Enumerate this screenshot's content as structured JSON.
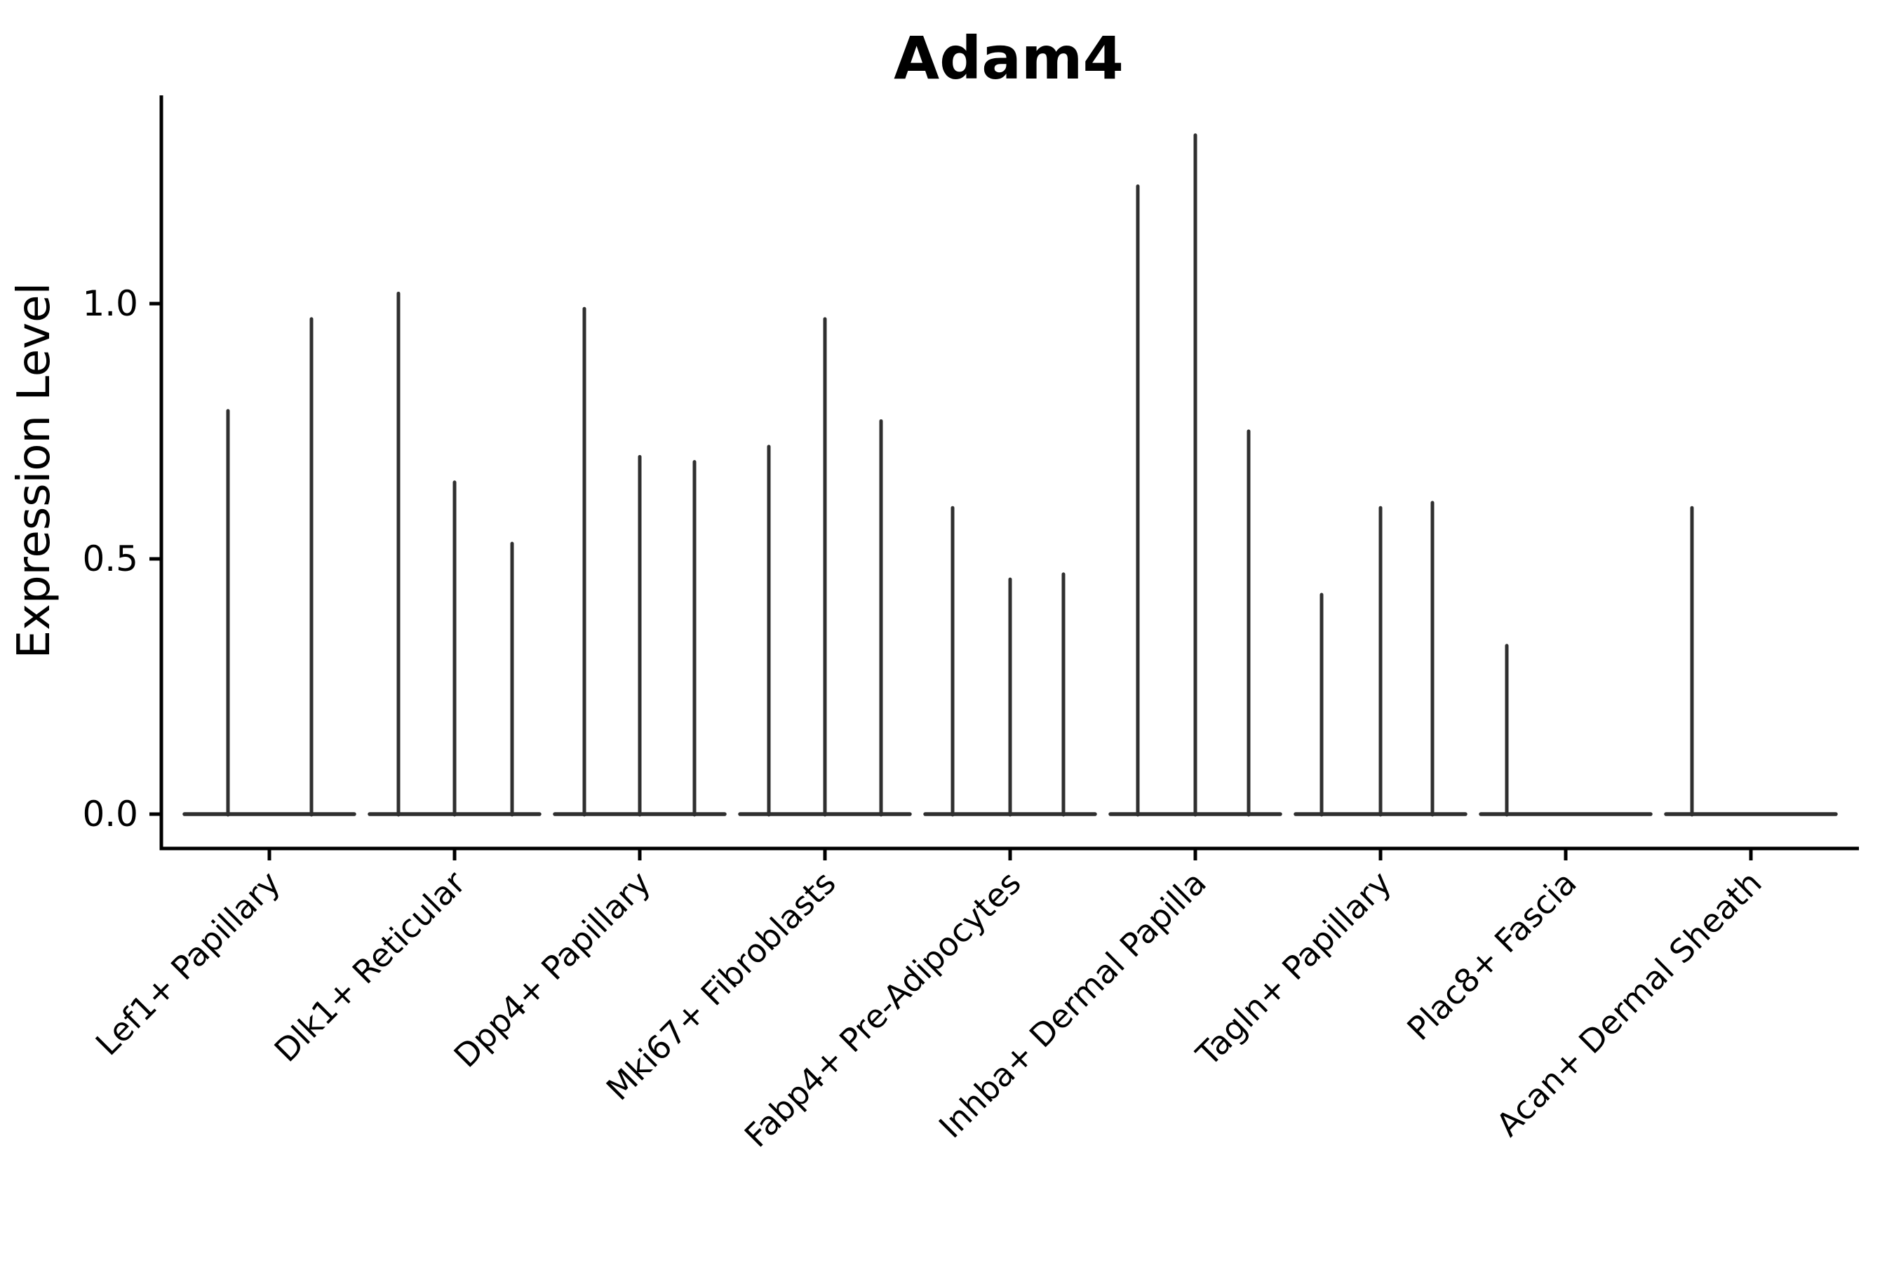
{
  "title": "Adam4",
  "y_axis": {
    "label": "Expression Level",
    "tick_labels": [
      "0.0",
      "0.5",
      "1.0"
    ]
  },
  "chart_data": {
    "type": "violin",
    "title": "Adam4",
    "xlabel": "",
    "ylabel": "Expression Level",
    "ylim": [
      -0.06,
      1.41
    ],
    "yticks": [
      0.0,
      0.5,
      1.0
    ],
    "grid": false,
    "legend": false,
    "categories": [
      "Lef1+ Papillary",
      "Dlk1+ Reticular",
      "Dpp4+ Papillary",
      "Mki67+ Fibroblasts",
      "Fabp4+ Pre-Adipocytes",
      "Inhba+ Dermal Papilla",
      "Tagln+ Papillary",
      "Plac8+ Fascia",
      "Acan+ Dermal Sheath"
    ],
    "violins": [
      {
        "category": "Lef1+ Papillary",
        "spikes": [
          {
            "offset": -59,
            "value": 0.79
          },
          {
            "offset": 60,
            "value": 0.97
          }
        ]
      },
      {
        "category": "Dlk1+ Reticular",
        "spikes": [
          {
            "offset": -80,
            "value": 1.02
          },
          {
            "offset": 0,
            "value": 0.65
          },
          {
            "offset": 82,
            "value": 0.53
          }
        ]
      },
      {
        "category": "Dpp4+ Papillary",
        "spikes": [
          {
            "offset": -79,
            "value": 0.99
          },
          {
            "offset": 0,
            "value": 0.7
          },
          {
            "offset": 78,
            "value": 0.69
          }
        ]
      },
      {
        "category": "Mki67+ Fibroblasts",
        "spikes": [
          {
            "offset": -80,
            "value": 0.72
          },
          {
            "offset": 0,
            "value": 0.97
          },
          {
            "offset": 80,
            "value": 0.77
          }
        ]
      },
      {
        "category": "Fabp4+ Pre-Adipocytes",
        "spikes": [
          {
            "offset": -82,
            "value": 0.6
          },
          {
            "offset": 0,
            "value": 0.46
          },
          {
            "offset": 76,
            "value": 0.47
          }
        ]
      },
      {
        "category": "Inhba+ Dermal Papilla",
        "spikes": [
          {
            "offset": -82,
            "value": 1.23
          },
          {
            "offset": 0,
            "value": 1.33
          },
          {
            "offset": 76,
            "value": 0.75
          }
        ]
      },
      {
        "category": "Tagln+ Papillary",
        "spikes": [
          {
            "offset": -84,
            "value": 0.43
          },
          {
            "offset": 0,
            "value": 0.6
          },
          {
            "offset": 74,
            "value": 0.61
          }
        ]
      },
      {
        "category": "Plac8+ Fascia",
        "spikes": [
          {
            "offset": -84,
            "value": 0.33
          }
        ]
      },
      {
        "category": "Acan+ Dermal Sheath",
        "spikes": [
          {
            "offset": -84,
            "value": 0.6
          }
        ]
      }
    ],
    "style": {
      "violin_color": "#2f2f2f",
      "axis_color": "#000000",
      "background_color": "#ffffff"
    }
  }
}
